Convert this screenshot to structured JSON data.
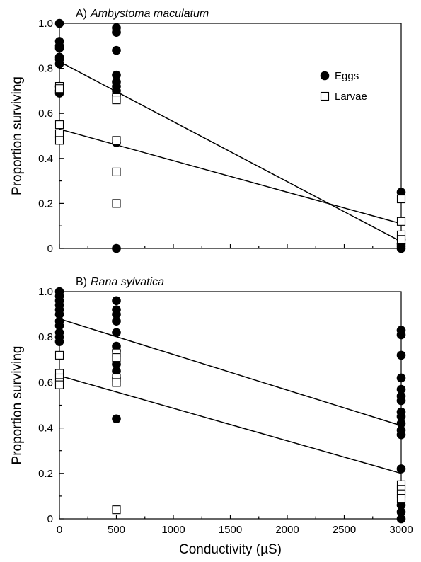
{
  "chart_data": [
    {
      "type": "scatter",
      "panel": "A)",
      "title": "Ambystoma maculatum",
      "ylabel": "Proportion surviving",
      "xlabel": "",
      "xlim": [
        0,
        3000
      ],
      "ylim": [
        0,
        1.0
      ],
      "xticks": [
        0,
        500,
        1000,
        1500,
        2000,
        2500,
        3000
      ],
      "yticks": [
        0,
        0.2,
        0.4,
        0.6,
        0.8,
        1.0
      ],
      "ytick_labels": [
        "0",
        "0.2",
        "0.4",
        "0.6",
        "0.8",
        "1.0"
      ],
      "show_xtick_labels": false,
      "legend": {
        "placement": "top-right",
        "entries": [
          "Eggs",
          "Larvae"
        ]
      },
      "series": [
        {
          "name": "Eggs",
          "marker": "filled-circle",
          "points": [
            [
              0,
              1.0
            ],
            [
              0,
              0.92
            ],
            [
              0,
              0.9
            ],
            [
              0,
              0.89
            ],
            [
              0,
              0.85
            ],
            [
              0,
              0.84
            ],
            [
              0,
              0.82
            ],
            [
              0,
              0.72
            ],
            [
              0,
              0.7
            ],
            [
              0,
              0.69
            ],
            [
              500,
              0.98
            ],
            [
              500,
              0.96
            ],
            [
              500,
              0.88
            ],
            [
              500,
              0.77
            ],
            [
              500,
              0.74
            ],
            [
              500,
              0.72
            ],
            [
              500,
              0.7
            ],
            [
              500,
              0.68
            ],
            [
              500,
              0.47
            ],
            [
              500,
              0.0
            ],
            [
              3000,
              0.25
            ],
            [
              3000,
              0.04
            ],
            [
              3000,
              0.02
            ],
            [
              3000,
              0.01
            ],
            [
              3000,
              0.0
            ]
          ],
          "fit": [
            [
              0,
              0.83
            ],
            [
              3000,
              0.03
            ]
          ]
        },
        {
          "name": "Larvae",
          "marker": "open-square",
          "points": [
            [
              0,
              0.72
            ],
            [
              0,
              0.71
            ],
            [
              0,
              0.55
            ],
            [
              0,
              0.51
            ],
            [
              0,
              0.48
            ],
            [
              500,
              0.67
            ],
            [
              500,
              0.66
            ],
            [
              500,
              0.48
            ],
            [
              500,
              0.34
            ],
            [
              500,
              0.2
            ],
            [
              3000,
              0.22
            ],
            [
              3000,
              0.12
            ],
            [
              3000,
              0.06
            ],
            [
              3000,
              0.04
            ]
          ],
          "fit": [
            [
              0,
              0.53
            ],
            [
              3000,
              0.11
            ]
          ]
        }
      ]
    },
    {
      "type": "scatter",
      "panel": "B)",
      "title": "Rana sylvatica",
      "ylabel": "Proportion surviving",
      "xlabel": "Conductivity (µS)",
      "xlim": [
        0,
        3000
      ],
      "ylim": [
        0,
        1.0
      ],
      "xticks": [
        0,
        500,
        1000,
        1500,
        2000,
        2500,
        3000
      ],
      "xtick_labels": [
        "0",
        "500",
        "1000",
        "1500",
        "2000",
        "2500",
        "3000"
      ],
      "yticks": [
        0,
        0.2,
        0.4,
        0.6,
        0.8,
        1.0
      ],
      "ytick_labels": [
        "0",
        "0.2",
        "0.4",
        "0.6",
        "0.8",
        "1.0"
      ],
      "show_xtick_labels": true,
      "series": [
        {
          "name": "Eggs",
          "marker": "filled-circle",
          "points": [
            [
              0,
              1.0
            ],
            [
              0,
              0.98
            ],
            [
              0,
              0.96
            ],
            [
              0,
              0.94
            ],
            [
              0,
              0.92
            ],
            [
              0,
              0.9
            ],
            [
              0,
              0.87
            ],
            [
              0,
              0.85
            ],
            [
              0,
              0.82
            ],
            [
              0,
              0.8
            ],
            [
              0,
              0.78
            ],
            [
              500,
              0.96
            ],
            [
              500,
              0.92
            ],
            [
              500,
              0.9
            ],
            [
              500,
              0.87
            ],
            [
              500,
              0.82
            ],
            [
              500,
              0.76
            ],
            [
              500,
              0.74
            ],
            [
              500,
              0.68
            ],
            [
              500,
              0.65
            ],
            [
              500,
              0.62
            ],
            [
              500,
              0.44
            ],
            [
              3000,
              0.83
            ],
            [
              3000,
              0.81
            ],
            [
              3000,
              0.72
            ],
            [
              3000,
              0.62
            ],
            [
              3000,
              0.57
            ],
            [
              3000,
              0.54
            ],
            [
              3000,
              0.52
            ],
            [
              3000,
              0.47
            ],
            [
              3000,
              0.45
            ],
            [
              3000,
              0.42
            ],
            [
              3000,
              0.39
            ],
            [
              3000,
              0.37
            ],
            [
              3000,
              0.22
            ],
            [
              3000,
              0.06
            ],
            [
              3000,
              0.03
            ],
            [
              3000,
              0.0
            ]
          ],
          "fit": [
            [
              0,
              0.88
            ],
            [
              3000,
              0.41
            ]
          ]
        },
        {
          "name": "Larvae",
          "marker": "open-square",
          "points": [
            [
              0,
              0.72
            ],
            [
              0,
              0.64
            ],
            [
              0,
              0.62
            ],
            [
              0,
              0.6
            ],
            [
              0,
              0.59
            ],
            [
              500,
              0.73
            ],
            [
              500,
              0.71
            ],
            [
              500,
              0.62
            ],
            [
              500,
              0.6
            ],
            [
              500,
              0.04
            ],
            [
              3000,
              0.15
            ],
            [
              3000,
              0.13
            ],
            [
              3000,
              0.11
            ],
            [
              3000,
              0.09
            ]
          ],
          "fit": [
            [
              0,
              0.63
            ],
            [
              3000,
              0.2
            ]
          ]
        }
      ]
    }
  ]
}
